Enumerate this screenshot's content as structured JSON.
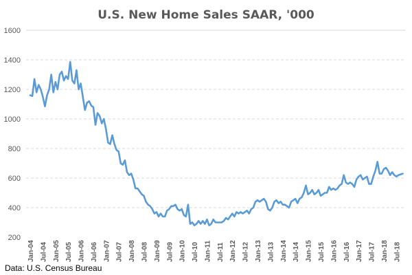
{
  "chart_data": {
    "type": "line",
    "title": "U.S. New Home Sales SAAR, '000",
    "xlabel": "",
    "ylabel": "",
    "ylim": [
      200,
      1600
    ],
    "yticks": [
      200,
      400,
      600,
      800,
      1000,
      1200,
      1400,
      1600
    ],
    "grid": true,
    "legend": "none",
    "source_note": "Data: U.S. Census Bureau",
    "line_color": "#5B9BD5",
    "xticks": [
      "Jan-04",
      "Jul-04",
      "Jan-05",
      "Jul-05",
      "Jan-06",
      "Jul-06",
      "Jan-07",
      "Jul-07",
      "Jan-08",
      "Jul-08",
      "Jan-09",
      "Jul-09",
      "Jan-10",
      "Jul-10",
      "Jan-11",
      "Jul-11",
      "Jan-12",
      "Jul-12",
      "Jan-13",
      "Jul-13",
      "Jan-14",
      "Jul-14",
      "Jan-15",
      "Jul-15",
      "Jan-16",
      "Jul-16",
      "Jan-17",
      "Jul-17",
      "Jan-18",
      "Jul-18"
    ],
    "x_start": "Jan-04",
    "x_frequency": "monthly",
    "series": [
      {
        "name": "New Home Sales SAAR ('000)",
        "values": [
          1160,
          1155,
          1270,
          1180,
          1230,
          1200,
          1150,
          1085,
          1160,
          1200,
          1300,
          1180,
          1250,
          1200,
          1300,
          1320,
          1260,
          1290,
          1270,
          1386,
          1260,
          1240,
          1330,
          1200,
          1240,
          1150,
          1060,
          1110,
          1120,
          1090,
          1080,
          960,
          1040,
          1020,
          970,
          1000,
          930,
          840,
          830,
          890,
          830,
          790,
          780,
          700,
          690,
          720,
          640,
          620,
          630,
          590,
          530,
          530,
          510,
          490,
          480,
          440,
          420,
          410,
          390,
          360,
          370,
          340,
          360,
          340,
          340,
          380,
          390,
          410,
          410,
          420,
          390,
          380,
          390,
          350,
          340,
          420,
          290,
          300,
          280,
          290,
          310,
          290,
          310,
          290,
          320,
          280,
          290,
          320,
          300,
          300,
          300,
          300,
          310,
          330,
          320,
          340,
          360,
          340,
          370,
          360,
          370,
          360,
          370,
          380,
          360,
          390,
          400,
          440,
          450,
          440,
          450,
          460,
          440,
          390,
          380,
          400,
          440,
          450,
          430,
          440,
          420,
          420,
          410,
          400,
          440,
          450,
          460,
          430,
          460,
          470,
          500,
          550,
          490,
          500,
          520,
          490,
          500,
          520,
          480,
          490,
          500,
          500,
          540,
          520,
          530,
          520,
          530,
          550,
          560,
          620,
          570,
          560,
          570,
          560,
          540,
          590,
          610,
          620,
          590,
          600,
          610,
          560,
          560,
          610,
          650,
          710,
          630,
          630,
          660,
          670,
          650,
          620,
          640,
          620,
          610,
          620,
          625,
          630
        ]
      }
    ]
  }
}
